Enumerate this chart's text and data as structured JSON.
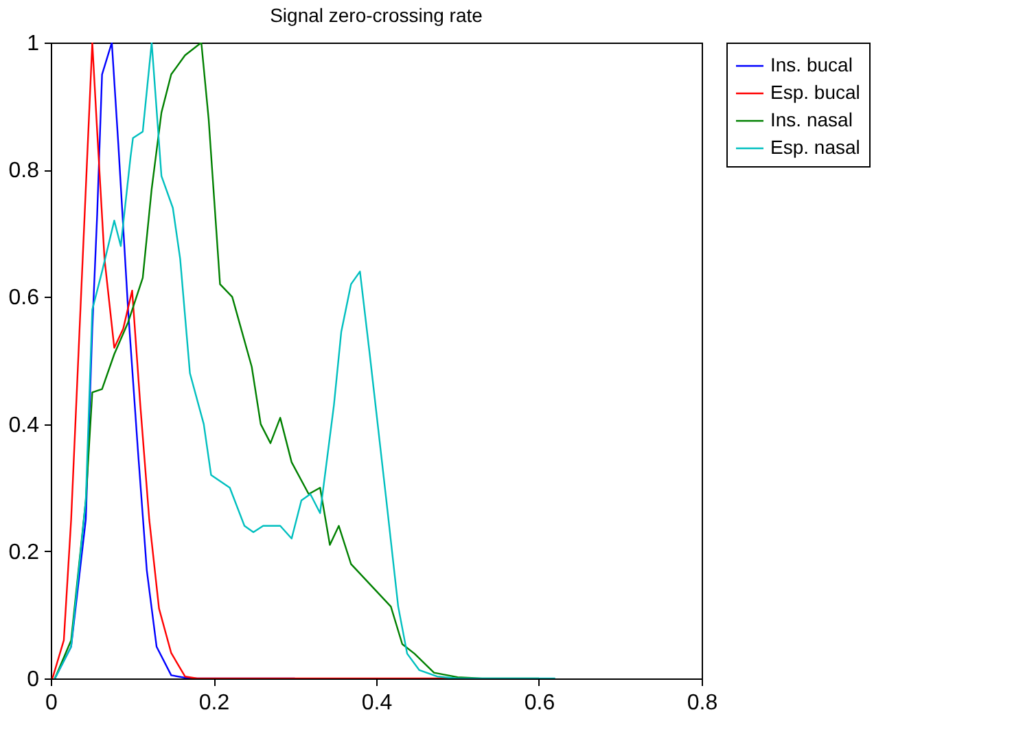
{
  "chart_data": {
    "type": "line",
    "title": "Signal zero-crossing rate",
    "xlim": [
      0,
      0.8
    ],
    "xticks": [
      0,
      0.2,
      0.4,
      0.6,
      0.8
    ],
    "ylim": [
      0,
      1
    ],
    "yticks": [
      0,
      0.2,
      0.4,
      0.6,
      0.8,
      1
    ],
    "grid": false,
    "legend": "top right",
    "line_style": "solid",
    "marker": "none",
    "series": [
      {
        "name": "Ins. bucal",
        "color": "#0000ff",
        "x": [
          0.005,
          0.025,
          0.043,
          0.051,
          0.057,
          0.063,
          0.075,
          0.083,
          0.095,
          0.107,
          0.118,
          0.13,
          0.148,
          0.17,
          0.3
        ],
        "values": [
          0,
          0.05,
          0.25,
          0.55,
          0.73,
          0.95,
          1.0,
          0.84,
          0.58,
          0.36,
          0.17,
          0.05,
          0.005,
          0,
          0
        ]
      },
      {
        "name": "Esp. bucal",
        "color": "#ff0000",
        "x": [
          0.002,
          0.016,
          0.025,
          0.034,
          0.043,
          0.051,
          0.057,
          0.066,
          0.078,
          0.089,
          0.1,
          0.11,
          0.121,
          0.133,
          0.148,
          0.165,
          0.18,
          0.5
        ],
        "values": [
          0,
          0.06,
          0.25,
          0.51,
          0.77,
          1.0,
          0.86,
          0.66,
          0.52,
          0.55,
          0.61,
          0.43,
          0.25,
          0.11,
          0.04,
          0.003,
          0,
          0
        ]
      },
      {
        "name": "Ins. nasal",
        "color": "#008000",
        "x": [
          0.005,
          0.025,
          0.043,
          0.051,
          0.063,
          0.078,
          0.095,
          0.113,
          0.124,
          0.136,
          0.148,
          0.165,
          0.185,
          0.194,
          0.208,
          0.223,
          0.247,
          0.258,
          0.27,
          0.282,
          0.296,
          0.317,
          0.331,
          0.343,
          0.354,
          0.369,
          0.418,
          0.432,
          0.447,
          0.471,
          0.5,
          0.53,
          0.6
        ],
        "values": [
          0,
          0.06,
          0.28,
          0.45,
          0.455,
          0.51,
          0.56,
          0.63,
          0.77,
          0.89,
          0.95,
          0.98,
          1.0,
          0.88,
          0.62,
          0.6,
          0.49,
          0.4,
          0.37,
          0.41,
          0.34,
          0.29,
          0.3,
          0.21,
          0.24,
          0.18,
          0.113,
          0.054,
          0.039,
          0.009,
          0.002,
          0,
          0
        ]
      },
      {
        "name": "Esp. nasal",
        "color": "#00bfbf",
        "x": [
          0.005,
          0.025,
          0.043,
          0.051,
          0.063,
          0.078,
          0.086,
          0.098,
          0.101,
          0.113,
          0.124,
          0.136,
          0.15,
          0.159,
          0.171,
          0.188,
          0.197,
          0.22,
          0.238,
          0.249,
          0.261,
          0.282,
          0.296,
          0.308,
          0.319,
          0.331,
          0.348,
          0.357,
          0.369,
          0.38,
          0.392,
          0.412,
          0.427,
          0.438,
          0.453,
          0.475,
          0.5,
          0.62
        ],
        "values": [
          0,
          0.05,
          0.28,
          0.58,
          0.64,
          0.72,
          0.68,
          0.82,
          0.85,
          0.86,
          1.0,
          0.79,
          0.74,
          0.66,
          0.48,
          0.4,
          0.32,
          0.3,
          0.24,
          0.23,
          0.24,
          0.24,
          0.22,
          0.28,
          0.29,
          0.26,
          0.43,
          0.545,
          0.62,
          0.64,
          0.51,
          0.285,
          0.113,
          0.039,
          0.013,
          0.003,
          0,
          0
        ]
      }
    ]
  }
}
